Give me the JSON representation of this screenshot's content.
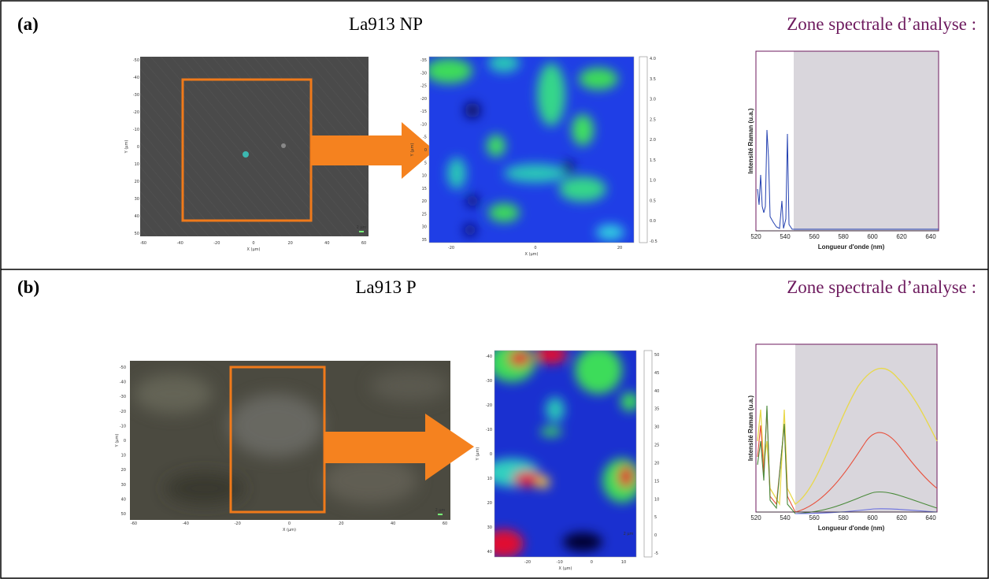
{
  "panels": [
    {
      "label": "(a)",
      "title": "La913 NP",
      "zone_title": "Zone spectrale d’analyse :",
      "micrograph": {
        "xticks": [
          "-60",
          "-40",
          "-20",
          "0",
          "20",
          "40",
          "60"
        ],
        "yticks": [
          "-50",
          "-40",
          "-30",
          "-20",
          "-10",
          "0",
          "10",
          "20",
          "30",
          "40",
          "50"
        ],
        "xlabel": "X (µm)",
        "ylabel": "Y (µm)",
        "scale_bar": "2 µm"
      },
      "map": {
        "xticks": [
          "-20",
          "0",
          "20"
        ],
        "yticks": [
          "-35",
          "-30",
          "-25",
          "-20",
          "-15",
          "-10",
          "-5",
          "0",
          "5",
          "10",
          "15",
          "20",
          "25",
          "30",
          "35"
        ],
        "xlabel": "X (µm)",
        "ylabel": "Y (µm)",
        "colorbar_ticks": [
          "4.0",
          "3.5",
          "3.0",
          "2.5",
          "2.0",
          "1.5",
          "1.0",
          "0.5",
          "0.0",
          "-0.5"
        ]
      },
      "spectrum": {
        "xticks": [
          "520",
          "540",
          "560",
          "580",
          "600",
          "620",
          "640"
        ],
        "xlabel": "Longueur d'onde (nm)",
        "ylabel": "Intensité Raman (u.a.)"
      }
    },
    {
      "label": "(b)",
      "title": "La913 P",
      "zone_title": "Zone spectrale d’analyse :",
      "micrograph": {
        "xticks": [
          "-60",
          "-40",
          "-20",
          "0",
          "20",
          "40",
          "60"
        ],
        "yticks": [
          "-50",
          "-40",
          "-30",
          "-20",
          "-10",
          "0",
          "10",
          "20",
          "30",
          "40",
          "50"
        ],
        "xlabel": "X (µm)",
        "ylabel": "Y (µm)",
        "scale_bar": "2 µm"
      },
      "map": {
        "xticks": [
          "-20",
          "-10",
          "0",
          "10"
        ],
        "yticks": [
          "-40",
          "-30",
          "-20",
          "-10",
          "0",
          "10",
          "20",
          "30",
          "40"
        ],
        "xlabel": "X (µm)",
        "ylabel": "Y (µm)",
        "scale_bar": "2 µm",
        "colorbar_ticks": [
          "50",
          "45",
          "40",
          "35",
          "30",
          "25",
          "20",
          "15",
          "10",
          "5",
          "0",
          "-5"
        ]
      },
      "spectrum": {
        "xticks": [
          "520",
          "540",
          "560",
          "580",
          "600",
          "620",
          "640"
        ],
        "xlabel": "Longueur d'onde (nm)",
        "ylabel": "Intensité Raman (u.a.)"
      }
    }
  ]
}
